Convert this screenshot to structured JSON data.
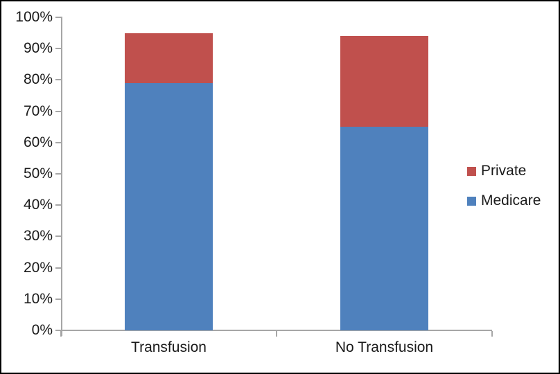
{
  "chart_data": {
    "type": "bar",
    "stacked": true,
    "title": "",
    "xlabel": "",
    "ylabel": "",
    "categories": [
      "Transfusion",
      "No Transfusion"
    ],
    "series": [
      {
        "name": "Medicare",
        "color": "#4F81BD",
        "values": [
          79,
          65
        ]
      },
      {
        "name": "Private",
        "color": "#C0504D",
        "values": [
          16,
          29
        ]
      }
    ],
    "stack_totals": [
      95,
      94
    ],
    "ylim": [
      0,
      100
    ],
    "ytick_step": 10,
    "ytick_labels": [
      "0%",
      "10%",
      "20%",
      "30%",
      "40%",
      "50%",
      "60%",
      "70%",
      "80%",
      "90%",
      "100%"
    ],
    "grid": false,
    "legend_position": "right",
    "legend": [
      {
        "label": "Private",
        "color": "#C0504D"
      },
      {
        "label": "Medicare",
        "color": "#4F81BD"
      }
    ]
  },
  "colors": {
    "axis": "#A6A6A6",
    "text": "#1A1A1A",
    "border": "#000000",
    "background": "#FFFFFF",
    "medicare_blue": "#4F81BD",
    "private_red": "#C0504D"
  }
}
